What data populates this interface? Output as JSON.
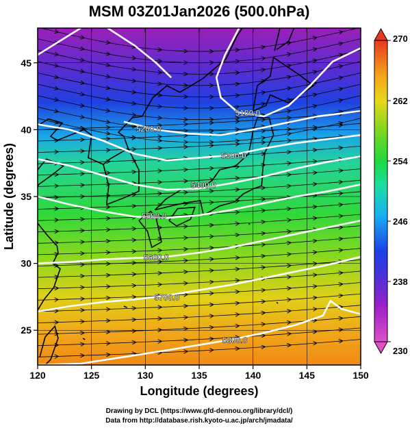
{
  "title": "MSM 03Z01Jan2026 (500.0hPa)",
  "xlabel": "Longitude (degrees)",
  "ylabel": "Latitude  (degrees)",
  "footer": {
    "line1": "Drawing by DCL (https://www.gfd-dennou.org/library/dcl/)",
    "line2": "Data from http://database.rish.kyoto-u.ac.jp/arch/jmadata/"
  },
  "map": {
    "lon_range": [
      120,
      150
    ],
    "lat_range": [
      22.4,
      47.6
    ],
    "x_ticks": [
      {
        "value": 120,
        "label": "120"
      },
      {
        "value": 125,
        "label": "125"
      },
      {
        "value": 130,
        "label": "130"
      },
      {
        "value": 135,
        "label": "135"
      },
      {
        "value": 140,
        "label": "140"
      },
      {
        "value": 145,
        "label": "145"
      },
      {
        "value": 150,
        "label": "150"
      }
    ],
    "y_ticks": [
      {
        "value": 25,
        "label": "25"
      },
      {
        "value": 30,
        "label": "30"
      },
      {
        "value": 35,
        "label": "35"
      },
      {
        "value": 40,
        "label": "40"
      },
      {
        "value": 45,
        "label": "45"
      }
    ],
    "grid": true
  },
  "colorbar": {
    "min": 230,
    "max": 270,
    "labels": [
      {
        "value": 230,
        "label": "230"
      },
      {
        "value": 238,
        "label": "238"
      },
      {
        "value": 246,
        "label": "246"
      },
      {
        "value": 254,
        "label": "254"
      },
      {
        "value": 262,
        "label": "262"
      },
      {
        "value": 270,
        "label": "270"
      }
    ]
  },
  "contours": [
    {
      "label": "5100.0",
      "label_lon": 139.5,
      "label_lat": 41.3,
      "pts": [
        [
          138.7,
          47.6
        ],
        [
          137.4,
          45.6
        ],
        [
          136.6,
          43.9
        ],
        [
          137.0,
          42.4
        ],
        [
          138.6,
          41.3
        ],
        [
          141.0,
          41.0
        ],
        [
          143.3,
          41.8
        ],
        [
          145.3,
          43.3
        ],
        [
          147.4,
          45.1
        ],
        [
          150,
          46.1
        ]
      ]
    },
    {
      "label": "5200.0",
      "label_lon": 130.3,
      "label_lat": 40.1,
      "pts": [
        [
          120,
          45.6
        ],
        [
          122.0,
          46.6
        ],
        [
          124.0,
          47.6
        ]
      ],
      "extra": [
        [
          [
            126.5,
            47.6
          ],
          [
            129.0,
            46.3
          ],
          [
            131.0,
            45.0
          ],
          [
            132.4,
            43.9
          ]
        ],
        [
          [
            128.0,
            40.6
          ],
          [
            131.0,
            40.0
          ],
          [
            134.0,
            39.7
          ],
          [
            137.0,
            39.6
          ],
          [
            140.0,
            40.0
          ],
          [
            143.0,
            40.5
          ],
          [
            146.0,
            41.0
          ],
          [
            150,
            41.4
          ]
        ]
      ]
    },
    {
      "label": "5300.0",
      "label_lon": 138.2,
      "label_lat": 38.1,
      "pts": [
        [
          120,
          40.4
        ],
        [
          123.0,
          40.0
        ],
        [
          126.0,
          39.2
        ],
        [
          129.0,
          38.2
        ],
        [
          132.0,
          37.7
        ],
        [
          135.0,
          37.9
        ],
        [
          138.0,
          38.1
        ],
        [
          141.0,
          38.6
        ],
        [
          144.0,
          39.0
        ],
        [
          147.0,
          39.3
        ],
        [
          150,
          39.6
        ]
      ]
    },
    {
      "label": "5400.0",
      "label_lon": 135.4,
      "label_lat": 35.9,
      "pts": [
        [
          120,
          37.8
        ],
        [
          123.0,
          37.3
        ],
        [
          126.0,
          36.6
        ],
        [
          129.0,
          35.9
        ],
        [
          132.0,
          35.5
        ],
        [
          135.0,
          35.6
        ],
        [
          138.0,
          36.0
        ],
        [
          141.0,
          36.5
        ],
        [
          144.0,
          37.1
        ],
        [
          147.0,
          37.6
        ],
        [
          150,
          38.0
        ]
      ]
    },
    {
      "label": "5500.0",
      "label_lon": 130.8,
      "label_lat": 33.6,
      "pts": [
        [
          120,
          35.0
        ],
        [
          123.0,
          34.4
        ],
        [
          126.0,
          33.9
        ],
        [
          129.0,
          33.5
        ],
        [
          132.0,
          33.4
        ],
        [
          135.0,
          33.6
        ],
        [
          138.0,
          34.0
        ],
        [
          141.0,
          34.5
        ],
        [
          144.0,
          35.0
        ],
        [
          147.0,
          35.4
        ],
        [
          150,
          35.9
        ]
      ]
    },
    {
      "label": "5600.0",
      "label_lon": 131.0,
      "label_lat": 30.5,
      "pts": [
        [
          120,
          30.0
        ],
        [
          123.0,
          30.1
        ],
        [
          126.0,
          30.3
        ],
        [
          129.0,
          30.4
        ],
        [
          132.0,
          30.5
        ],
        [
          135.0,
          30.8
        ],
        [
          138.0,
          31.2
        ],
        [
          141.0,
          31.7
        ],
        [
          144.0,
          32.2
        ],
        [
          147.0,
          32.7
        ],
        [
          150,
          33.2
        ]
      ]
    },
    {
      "label": "5700.0",
      "label_lon": 132.0,
      "label_lat": 27.5,
      "pts": [
        [
          120,
          26.4
        ],
        [
          123.0,
          26.8
        ],
        [
          126.0,
          27.1
        ],
        [
          129.0,
          27.3
        ],
        [
          132.0,
          27.6
        ],
        [
          135.0,
          28.0
        ],
        [
          138.0,
          28.4
        ],
        [
          141.0,
          28.9
        ],
        [
          144.0,
          29.4
        ],
        [
          147.0,
          29.9
        ],
        [
          150,
          30.5
        ]
      ]
    },
    {
      "label": "5800.0",
      "label_lon": 138.3,
      "label_lat": 24.3,
      "pts": [
        [
          120,
          22.4
        ],
        [
          124.0,
          22.5
        ],
        [
          128.0,
          23.0
        ],
        [
          132.0,
          23.5
        ],
        [
          135.0,
          23.9
        ],
        [
          138.0,
          24.3
        ],
        [
          141.0,
          24.8
        ],
        [
          144.0,
          25.4
        ],
        [
          146.5,
          26.1
        ],
        [
          147.2,
          27.2
        ],
        [
          148.2,
          26.6
        ],
        [
          150,
          26.2
        ]
      ]
    }
  ]
}
